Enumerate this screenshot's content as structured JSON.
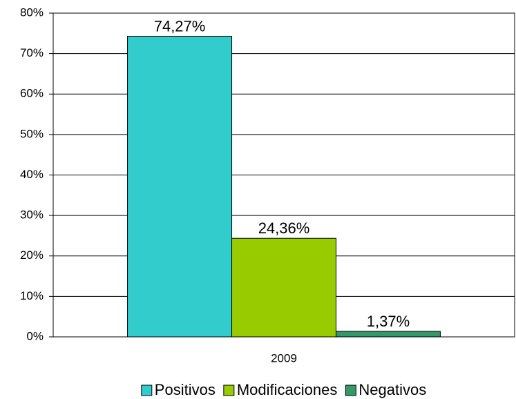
{
  "chart_data": {
    "type": "bar",
    "categories": [
      "2009"
    ],
    "series": [
      {
        "name": "Positivos",
        "color": "#33cccc",
        "values": [
          74.27
        ],
        "value_labels": [
          "74,27%"
        ]
      },
      {
        "name": "Modificaciones",
        "color": "#99cc00",
        "values": [
          24.36
        ],
        "value_labels": [
          "24,36%"
        ]
      },
      {
        "name": "Negativos",
        "color": "#339966",
        "values": [
          1.37
        ],
        "value_labels": [
          "1,37%"
        ]
      }
    ],
    "ylim": [
      0,
      80
    ],
    "yticks": [
      {
        "value": 0,
        "label": "0%"
      },
      {
        "value": 10,
        "label": "10%"
      },
      {
        "value": 20,
        "label": "20%"
      },
      {
        "value": 30,
        "label": "30%"
      },
      {
        "value": 40,
        "label": "40%"
      },
      {
        "value": 50,
        "label": "50%"
      },
      {
        "value": 60,
        "label": "60%"
      },
      {
        "value": 70,
        "label": "70%"
      },
      {
        "value": 80,
        "label": "80%"
      }
    ],
    "grid": true,
    "legend": "bottom"
  }
}
